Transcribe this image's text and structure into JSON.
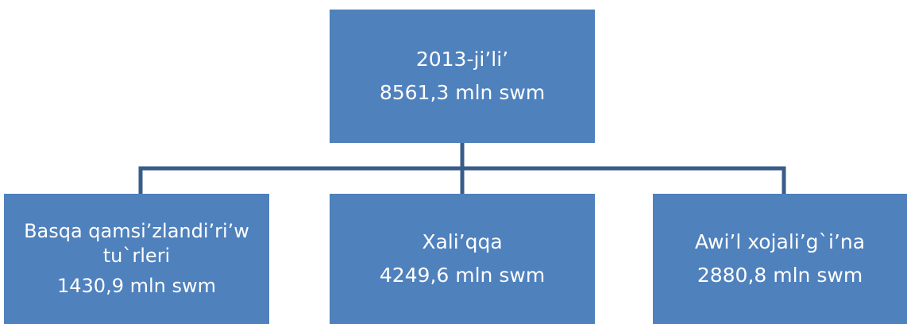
{
  "nodes": [
    {
      "lines": [
        "2013-ji’li’",
        "8561,3 mln swm"
      ]
    },
    {
      "lines": [
        "Basqa qamsi’zlandi’ri’w tu`rleri",
        "1430,9 mln swm"
      ]
    },
    {
      "lines": [
        "Xali’qqa",
        "4249,6 mln swm"
      ]
    },
    {
      "lines": [
        "Awi’l xojali’g`i’na",
        "2880,8 mln swm"
      ]
    }
  ]
}
